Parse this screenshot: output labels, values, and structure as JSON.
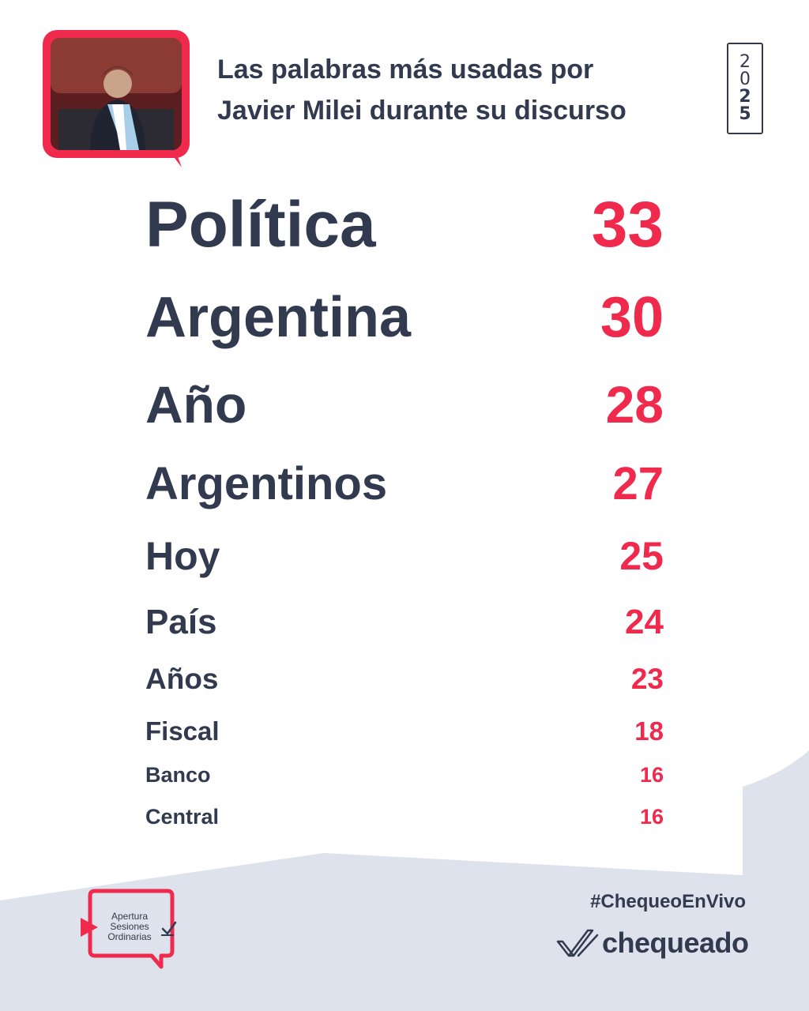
{
  "header": {
    "title_line1": "Las palabras más usadas por",
    "title_line2": "Javier Milei durante su discurso",
    "photo_icon": "speaker-photo-frame"
  },
  "year_badge": {
    "digits": [
      "2",
      "0",
      "2",
      "5"
    ]
  },
  "ranking": [
    {
      "word": "Política",
      "count": "33"
    },
    {
      "word": "Argentina",
      "count": "30"
    },
    {
      "word": "Año",
      "count": "28"
    },
    {
      "word": "Argentinos",
      "count": "27"
    },
    {
      "word": "Hoy",
      "count": "25"
    },
    {
      "word": "País",
      "count": "24"
    },
    {
      "word": "Años",
      "count": "23"
    },
    {
      "word": "Fiscal",
      "count": "18"
    },
    {
      "word": "Banco",
      "count": "16"
    },
    {
      "word": "Central",
      "count": "16"
    }
  ],
  "footer": {
    "hashtag": "#ChequeoEnVivo",
    "brand": "chequeado",
    "session_line1": "Apertura",
    "session_line2": "Sesiones",
    "session_line3": "Ordinarias"
  },
  "colors": {
    "text": "#323a4f",
    "accent": "#ef2a4d",
    "background_shape": "#dde2ec"
  }
}
